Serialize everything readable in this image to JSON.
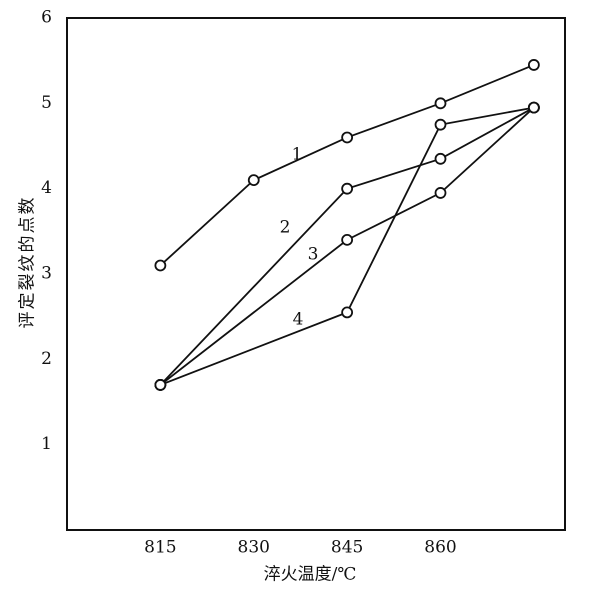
{
  "chart_data": {
    "type": "line",
    "xlabel": "淬火温度/℃",
    "ylabel": "评定裂纹的点数",
    "xlim": [
      800,
      880
    ],
    "xticks": [
      815,
      830,
      845,
      860
    ],
    "ylim": [
      0,
      6
    ],
    "yticks": [
      1,
      2,
      3,
      4,
      5,
      6
    ],
    "grid": false,
    "series": [
      {
        "name": "1",
        "color": "#111111",
        "x": [
          815,
          830,
          845,
          860,
          875
        ],
        "values": [
          3.1,
          4.1,
          4.6,
          5.0,
          5.45
        ]
      },
      {
        "name": "2",
        "color": "#111111",
        "x": [
          815,
          845,
          860,
          875
        ],
        "values": [
          1.7,
          4.0,
          4.35,
          4.95
        ]
      },
      {
        "name": "3",
        "color": "#111111",
        "x": [
          815,
          845,
          860,
          875
        ],
        "values": [
          1.7,
          3.4,
          3.95,
          4.95
        ]
      },
      {
        "name": "4",
        "color": "#111111",
        "x": [
          815,
          845,
          860,
          875
        ],
        "values": [
          1.7,
          2.55,
          4.75,
          4.95
        ]
      }
    ]
  }
}
